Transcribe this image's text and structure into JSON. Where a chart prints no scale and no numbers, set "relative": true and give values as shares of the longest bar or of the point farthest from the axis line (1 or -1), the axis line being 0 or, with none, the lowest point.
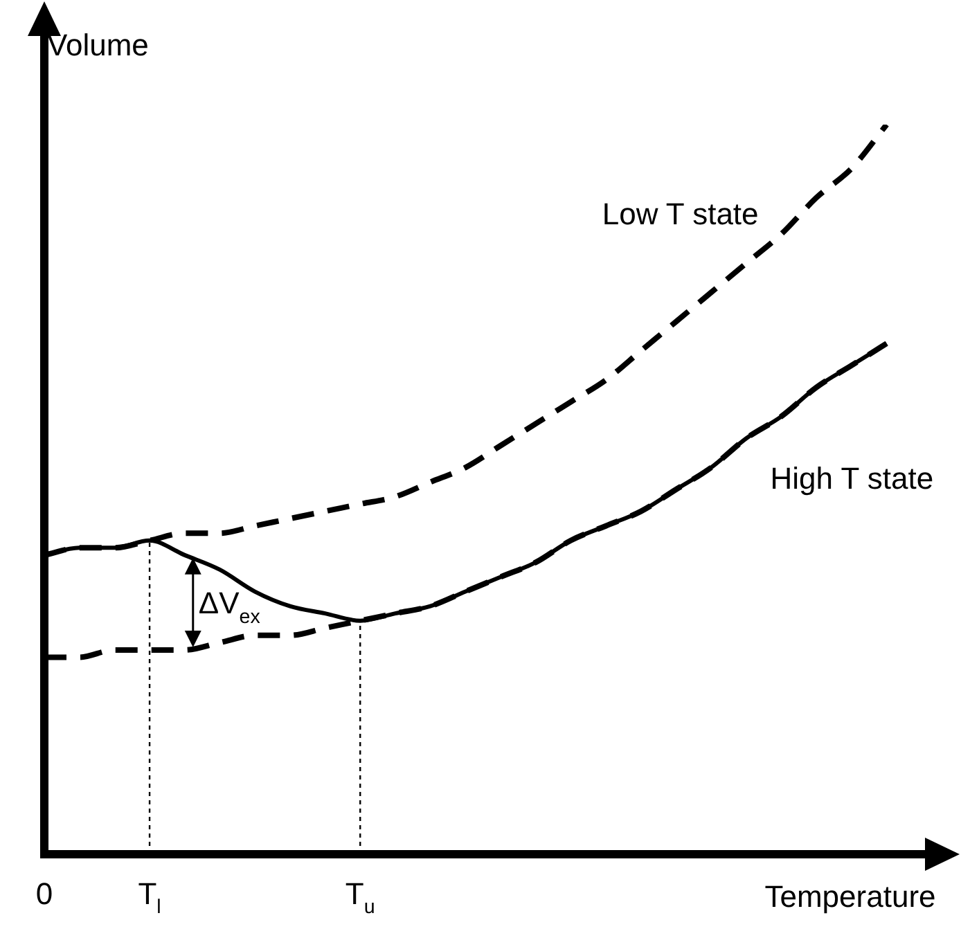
{
  "chart_data": {
    "type": "line",
    "xlabel": "Temperature",
    "ylabel": "Volume",
    "relative": true,
    "tick_labels": "x",
    "marker": "none",
    "categories": [
      "0",
      null,
      null,
      "T$_{l}$",
      null,
      null,
      null,
      null,
      null,
      "T$_{u}$",
      null,
      null,
      null,
      null,
      null,
      null,
      null,
      null,
      null,
      null,
      null,
      null,
      null,
      null,
      null,
      null,
      null
    ],
    "series": [
      {
        "name": "Low T state",
        "color": "#000000",
        "line_style": "dashed",
        "values": [
          0.41,
          0.42,
          0.42,
          0.43,
          0.44,
          0.44,
          0.45,
          0.46,
          0.47,
          0.48,
          0.49,
          0.51,
          0.53,
          0.56,
          0.59,
          0.62,
          0.65,
          0.69,
          0.73,
          0.77,
          0.81,
          0.85,
          0.9,
          0.94,
          1,
          null,
          null
        ]
      },
      {
        "name": "High T state",
        "color": "#000000",
        "line_style": "dashed",
        "values": [
          0.27,
          0.27,
          0.28,
          0.28,
          0.28,
          0.29,
          0.3,
          0.3,
          0.31,
          0.32,
          0.33,
          0.34,
          0.36,
          0.38,
          0.4,
          0.43,
          0.45,
          0.47,
          0.5,
          0.53,
          0.57,
          0.6,
          0.64,
          0.67,
          0.7,
          null,
          null
        ]
      },
      {
        "color": "#000000",
        "line_style": "solid",
        "values": [
          0.41,
          0.42,
          0.42,
          0.43,
          0.41,
          0.39,
          0.36,
          0.34,
          0.33,
          0.32,
          0.33,
          0.34,
          0.36,
          0.38,
          0.4,
          0.43,
          0.45,
          0.47,
          0.5,
          0.53,
          0.57,
          0.6,
          0.64,
          0.67,
          0.7,
          null,
          null
        ]
      }
    ],
    "ref_lines": [
      {
        "axis": "x",
        "value": "T$_{l}$",
        "line_style": "dotted",
        "color": "#000000"
      },
      {
        "axis": "x",
        "value": "T$_{u}$",
        "line_style": "dotted",
        "color": "#000000"
      }
    ],
    "annotations": [
      "ΔV$_{ex}$"
    ]
  }
}
